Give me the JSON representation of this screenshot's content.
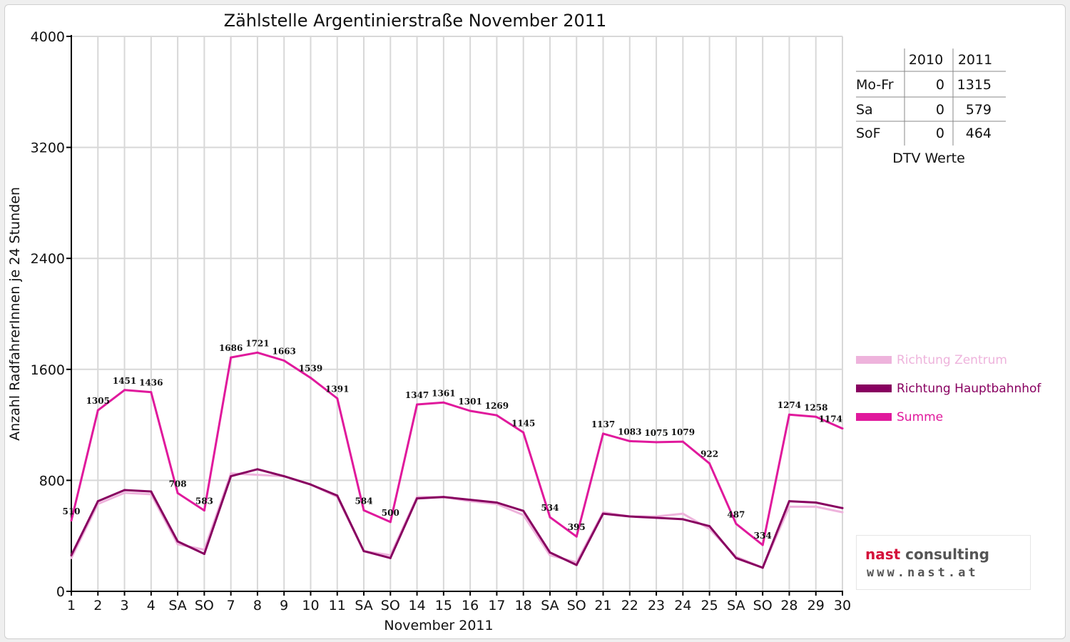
{
  "colors": {
    "zentrum": "#eeb3dc",
    "hauptbahnhof": "#880060",
    "summe": "#e0199c",
    "weekend_red": "#ff0000",
    "grid": "#d8d8d8"
  },
  "logo": {
    "part1": "nast",
    "part2": "consulting",
    "url": "www.nast.at"
  },
  "table": {
    "headers": [
      "",
      "2010",
      "2011"
    ],
    "rows": [
      {
        "label": "Mo-Fr",
        "v2010": "0",
        "v2011": "1315"
      },
      {
        "label": "Sa",
        "v2010": "0",
        "v2011": "579"
      },
      {
        "label": "SoF",
        "v2010": "0",
        "v2011": "464"
      }
    ],
    "caption": "DTV Werte"
  },
  "chart_data": {
    "type": "line",
    "title": "Zählstelle Argentinierstraße November 2011",
    "xlabel": "November 2011",
    "ylabel": "Anzahl RadfahrerInnen je 24 Stunden",
    "ylim": [
      0,
      4000
    ],
    "yticks": [
      0,
      800,
      1600,
      2400,
      3200,
      4000
    ],
    "grid": true,
    "legend_position": "right",
    "categories": [
      "1",
      "2",
      "3",
      "4",
      "SA",
      "SO",
      "7",
      "8",
      "9",
      "10",
      "11",
      "SA",
      "SO",
      "14",
      "15",
      "16",
      "17",
      "18",
      "SA",
      "SO",
      "21",
      "22",
      "23",
      "24",
      "25",
      "SA",
      "SO",
      "28",
      "29",
      "30"
    ],
    "red_categories": [
      0,
      5,
      12,
      19,
      26
    ],
    "series": [
      {
        "name": "Richtung Zentrum",
        "color": "#eeb3dc",
        "values": [
          240,
          630,
          710,
          700,
          340,
          300,
          850,
          840,
          830,
          770,
          680,
          290,
          260,
          680,
          680,
          650,
          630,
          550,
          260,
          210,
          570,
          540,
          540,
          560,
          450,
          250,
          170,
          610,
          610,
          570
        ]
      },
      {
        "name": "Richtung Hauptbahnhof",
        "color": "#880060",
        "values": [
          260,
          650,
          730,
          720,
          360,
          270,
          830,
          880,
          830,
          770,
          690,
          290,
          240,
          670,
          680,
          660,
          640,
          580,
          280,
          190,
          560,
          540,
          530,
          520,
          470,
          240,
          170,
          650,
          640,
          600
        ]
      },
      {
        "name": "Summe",
        "color": "#e0199c",
        "values": [
          510,
          1305,
          1451,
          1436,
          708,
          583,
          1686,
          1721,
          1663,
          1539,
          1391,
          584,
          500,
          1347,
          1361,
          1301,
          1269,
          1145,
          534,
          395,
          1137,
          1083,
          1075,
          1079,
          922,
          487,
          334,
          1274,
          1258,
          1174
        ]
      }
    ],
    "data_labels": [
      "510",
      "1305",
      "1451",
      "1436",
      "708",
      "583",
      "1686",
      "1721",
      "1663",
      "1539",
      "1391",
      "584",
      "500",
      "1347",
      "1361",
      "1301",
      "1269",
      "1145",
      "534",
      "395",
      "1137",
      "1083",
      "1075",
      "1079",
      "922",
      "487",
      "334",
      "1274",
      "1258",
      "1174"
    ]
  }
}
